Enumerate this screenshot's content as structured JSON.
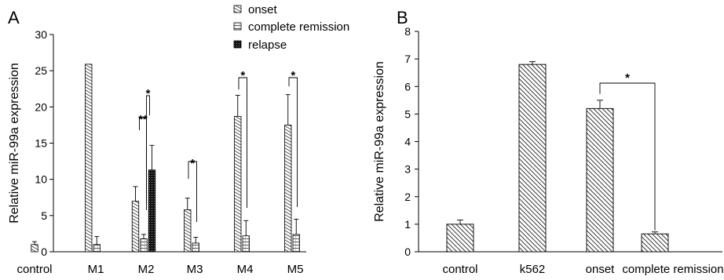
{
  "chart_data": [
    {
      "panel": "A",
      "type": "bar",
      "ylabel": "Relative miR-99a expression",
      "ylim": [
        0,
        30
      ],
      "yticks": [
        0,
        5,
        10,
        15,
        20,
        25,
        30
      ],
      "categories": [
        "control",
        "M1",
        "M2",
        "M3",
        "M4",
        "M5"
      ],
      "legend": [
        "onset",
        "complete remission",
        "relapse"
      ],
      "groups": [
        {
          "category": "control",
          "bars": [
            {
              "series": "control",
              "value": 1.0,
              "err": 0.4
            }
          ]
        },
        {
          "category": "M1",
          "bars": [
            {
              "series": "onset",
              "value": 25.9,
              "err": 0
            },
            {
              "series": "complete remission",
              "value": 1.0,
              "err": 1.1
            }
          ]
        },
        {
          "category": "M2",
          "bars": [
            {
              "series": "onset",
              "value": 7.0,
              "err": 2.0
            },
            {
              "series": "complete remission",
              "value": 1.8,
              "err": 0.6
            },
            {
              "series": "relapse",
              "value": 11.3,
              "err": 3.4
            }
          ]
        },
        {
          "category": "M3",
          "bars": [
            {
              "series": "onset",
              "value": 5.8,
              "err": 1.6
            },
            {
              "series": "complete remission",
              "value": 1.2,
              "err": 0.8
            }
          ]
        },
        {
          "category": "M4",
          "bars": [
            {
              "series": "onset",
              "value": 18.7,
              "err": 2.9
            },
            {
              "series": "complete remission",
              "value": 2.2,
              "err": 2.1
            }
          ]
        },
        {
          "category": "M5",
          "bars": [
            {
              "series": "onset",
              "value": 17.5,
              "err": 4.2
            },
            {
              "series": "complete remission",
              "value": 2.4,
              "err": 2.1
            }
          ]
        }
      ],
      "annotations": [
        {
          "group": "M2",
          "from": "onset",
          "to": "complete remission",
          "label": "**"
        },
        {
          "group": "M2",
          "from": "complete remission",
          "to": "relapse",
          "label": "*"
        },
        {
          "group": "M3",
          "from": "onset",
          "to": "complete remission",
          "label": "*"
        },
        {
          "group": "M4",
          "from": "onset",
          "to": "complete remission",
          "label": "*"
        },
        {
          "group": "M5",
          "from": "onset",
          "to": "complete remission",
          "label": "*"
        }
      ]
    },
    {
      "panel": "B",
      "type": "bar",
      "ylabel": "Relative miR-99a expression",
      "ylim": [
        0,
        8
      ],
      "yticks": [
        0,
        1,
        2,
        3,
        4,
        5,
        6,
        7,
        8
      ],
      "categories": [
        "control",
        "k562",
        "onset",
        "complete remission"
      ],
      "values": [
        1.0,
        6.8,
        5.2,
        0.65
      ],
      "errors": [
        0.15,
        0.1,
        0.3,
        0.07
      ],
      "annotations": [
        {
          "from": "onset",
          "to": "complete remission",
          "label": "*"
        }
      ]
    }
  ]
}
